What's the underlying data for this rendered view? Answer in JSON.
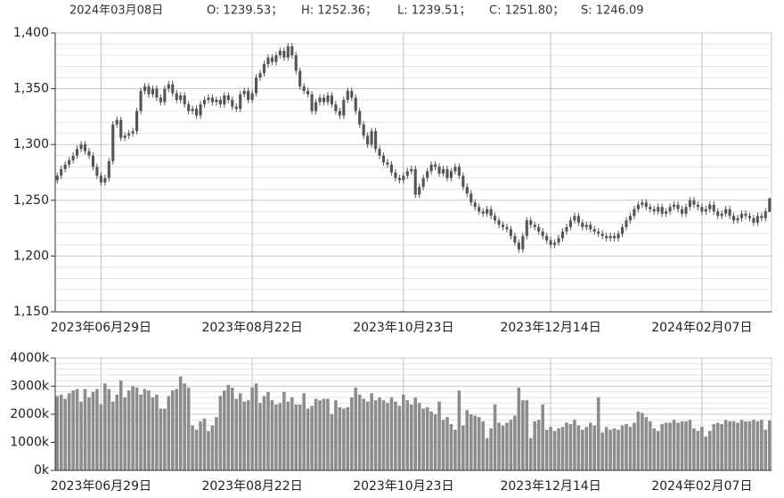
{
  "header": {
    "date": "2024年03月08日",
    "quote": [
      "O: 1239.53；",
      "H: 1252.36；",
      "L: 1239.51；",
      "C: 1251.80；",
      "S: 1246.09"
    ]
  },
  "chart_data": {
    "type": "candlestick",
    "categories": [
      null,
      null,
      null,
      null,
      null,
      null,
      null,
      null,
      null,
      null,
      null,
      "2023年06月29日",
      null,
      null,
      null,
      null,
      null,
      null,
      null,
      null,
      null,
      null,
      null,
      null,
      null,
      null,
      null,
      null,
      null,
      null,
      null,
      null,
      null,
      null,
      null,
      null,
      null,
      null,
      null,
      null,
      null,
      null,
      null,
      null,
      null,
      null,
      null,
      null,
      null,
      "2023年08月22日",
      null,
      null,
      null,
      null,
      null,
      null,
      null,
      null,
      null,
      null,
      null,
      null,
      null,
      null,
      null,
      null,
      null,
      null,
      null,
      null,
      null,
      null,
      null,
      null,
      null,
      null,
      null,
      null,
      null,
      null,
      null,
      null,
      null,
      null,
      null,
      null,
      null,
      "2023年10月23日",
      null,
      null,
      null,
      null,
      null,
      null,
      null,
      null,
      null,
      null,
      null,
      null,
      null,
      null,
      null,
      null,
      null,
      null,
      null,
      null,
      null,
      null,
      null,
      null,
      null,
      null,
      null,
      null,
      null,
      null,
      null,
      null,
      null,
      null,
      null,
      null,
      "2023年12月14日",
      null,
      null,
      null,
      null,
      null,
      null,
      null,
      null,
      null,
      null,
      null,
      null,
      null,
      null,
      null,
      null,
      null,
      null,
      null,
      null,
      null,
      null,
      null,
      null,
      null,
      null,
      null,
      null,
      null,
      null,
      null,
      null,
      null,
      null,
      null,
      null,
      null,
      "2024年02月07日",
      null,
      null,
      null,
      null,
      null,
      null,
      null,
      null,
      null,
      null,
      null,
      null,
      null,
      null,
      null,
      null,
      null
    ],
    "open": [
      1268,
      1272,
      1278,
      1282,
      1286,
      1290,
      1296,
      1300,
      1294,
      1290,
      1280,
      1272,
      1266,
      1270,
      1285,
      1318,
      1322,
      1306,
      1308,
      1310,
      1312,
      1330,
      1348,
      1352,
      1345,
      1350,
      1342,
      1338,
      1350,
      1354,
      1346,
      1340,
      1344,
      1336,
      1330,
      1332,
      1326,
      1336,
      1340,
      1342,
      1338,
      1340,
      1336,
      1344,
      1340,
      1334,
      1332,
      1345,
      1348,
      1340,
      1346,
      1360,
      1364,
      1372,
      1378,
      1374,
      1380,
      1384,
      1378,
      1388,
      1380,
      1366,
      1352,
      1348,
      1345,
      1330,
      1338,
      1342,
      1338,
      1344,
      1336,
      1330,
      1326,
      1340,
      1348,
      1342,
      1330,
      1318,
      1308,
      1300,
      1312,
      1296,
      1290,
      1284,
      1282,
      1275,
      1270,
      1268,
      1272,
      1276,
      1278,
      1255,
      1262,
      1270,
      1276,
      1282,
      1280,
      1274,
      1278,
      1270,
      1276,
      1280,
      1272,
      1262,
      1256,
      1248,
      1244,
      1240,
      1238,
      1242,
      1236,
      1232,
      1228,
      1226,
      1224,
      1218,
      1212,
      1206,
      1218,
      1232,
      1228,
      1226,
      1222,
      1218,
      1214,
      1210,
      1212,
      1216,
      1222,
      1226,
      1232,
      1236,
      1230,
      1226,
      1228,
      1224,
      1222,
      1220,
      1218,
      1216,
      1218,
      1216,
      1220,
      1226,
      1232,
      1236,
      1242,
      1246,
      1248,
      1244,
      1242,
      1240,
      1244,
      1238,
      1240,
      1244,
      1246,
      1242,
      1238,
      1244,
      1250,
      1246,
      1244,
      1240,
      1242,
      1246,
      1240,
      1236,
      1238,
      1242,
      1236,
      1232,
      1234,
      1238,
      1236,
      1234,
      1230,
      1236,
      1234,
      1239.53
    ],
    "high": [
      1275,
      1281,
      1285,
      1289,
      1293,
      1299,
      1303,
      1303,
      1297,
      1293,
      1283,
      1275,
      1273,
      1288,
      1321,
      1325,
      1325,
      1311,
      1313,
      1315,
      1333,
      1351,
      1355,
      1355,
      1353,
      1353,
      1345,
      1353,
      1357,
      1357,
      1349,
      1347,
      1347,
      1339,
      1335,
      1335,
      1339,
      1343,
      1345,
      1345,
      1343,
      1343,
      1347,
      1347,
      1343,
      1337,
      1348,
      1351,
      1351,
      1349,
      1363,
      1367,
      1375,
      1381,
      1381,
      1383,
      1387,
      1387,
      1391,
      1391,
      1383,
      1369,
      1355,
      1351,
      1348,
      1341,
      1345,
      1345,
      1347,
      1347,
      1339,
      1333,
      1343,
      1351,
      1351,
      1345,
      1333,
      1321,
      1311,
      1315,
      1315,
      1299,
      1293,
      1287,
      1285,
      1278,
      1273,
      1275,
      1279,
      1281,
      1281,
      1265,
      1273,
      1279,
      1285,
      1285,
      1283,
      1281,
      1281,
      1279,
      1283,
      1283,
      1275,
      1265,
      1259,
      1251,
      1247,
      1243,
      1245,
      1245,
      1239,
      1235,
      1231,
      1229,
      1227,
      1221,
      1215,
      1221,
      1235,
      1235,
      1231,
      1229,
      1225,
      1221,
      1217,
      1215,
      1219,
      1225,
      1229,
      1235,
      1239,
      1239,
      1233,
      1231,
      1231,
      1227,
      1225,
      1223,
      1221,
      1221,
      1221,
      1223,
      1229,
      1235,
      1239,
      1245,
      1249,
      1251,
      1251,
      1247,
      1245,
      1247,
      1247,
      1243,
      1247,
      1249,
      1249,
      1245,
      1247,
      1253,
      1253,
      1249,
      1247,
      1245,
      1249,
      1249,
      1243,
      1241,
      1245,
      1245,
      1239,
      1237,
      1241,
      1241,
      1239,
      1237,
      1239,
      1239,
      1243,
      1252.36
    ],
    "low": [
      1265,
      1269,
      1275,
      1279,
      1283,
      1287,
      1293,
      1291,
      1287,
      1277,
      1269,
      1263,
      1263,
      1267,
      1282,
      1315,
      1303,
      1303,
      1305,
      1307,
      1309,
      1327,
      1345,
      1342,
      1342,
      1339,
      1335,
      1335,
      1347,
      1343,
      1337,
      1337,
      1333,
      1327,
      1327,
      1323,
      1323,
      1333,
      1337,
      1335,
      1335,
      1333,
      1333,
      1337,
      1331,
      1329,
      1329,
      1342,
      1337,
      1337,
      1343,
      1357,
      1361,
      1369,
      1371,
      1371,
      1377,
      1375,
      1375,
      1377,
      1363,
      1349,
      1345,
      1342,
      1327,
      1327,
      1335,
      1335,
      1335,
      1333,
      1327,
      1323,
      1323,
      1337,
      1339,
      1327,
      1315,
      1305,
      1297,
      1297,
      1293,
      1287,
      1281,
      1279,
      1272,
      1267,
      1265,
      1265,
      1269,
      1273,
      1252,
      1252,
      1259,
      1267,
      1273,
      1277,
      1271,
      1271,
      1267,
      1267,
      1273,
      1269,
      1259,
      1253,
      1245,
      1241,
      1237,
      1235,
      1235,
      1233,
      1229,
      1225,
      1223,
      1221,
      1215,
      1209,
      1203,
      1203,
      1215,
      1225,
      1223,
      1219,
      1215,
      1211,
      1207,
      1207,
      1209,
      1213,
      1219,
      1223,
      1229,
      1227,
      1223,
      1223,
      1221,
      1219,
      1217,
      1215,
      1213,
      1213,
      1213,
      1213,
      1217,
      1223,
      1229,
      1233,
      1239,
      1243,
      1241,
      1239,
      1237,
      1237,
      1235,
      1235,
      1237,
      1241,
      1239,
      1235,
      1235,
      1241,
      1243,
      1241,
      1237,
      1237,
      1239,
      1237,
      1233,
      1233,
      1235,
      1233,
      1229,
      1229,
      1231,
      1233,
      1231,
      1227,
      1227,
      1231,
      1231,
      1239.51
    ],
    "close": [
      1272,
      1278,
      1282,
      1286,
      1290,
      1296,
      1300,
      1294,
      1290,
      1280,
      1272,
      1266,
      1270,
      1285,
      1318,
      1322,
      1306,
      1308,
      1310,
      1312,
      1330,
      1348,
      1352,
      1345,
      1350,
      1342,
      1338,
      1350,
      1354,
      1346,
      1340,
      1344,
      1336,
      1330,
      1332,
      1326,
      1336,
      1340,
      1342,
      1338,
      1340,
      1336,
      1344,
      1340,
      1334,
      1332,
      1345,
      1348,
      1340,
      1346,
      1360,
      1364,
      1372,
      1378,
      1374,
      1380,
      1384,
      1378,
      1388,
      1380,
      1366,
      1352,
      1348,
      1345,
      1330,
      1338,
      1342,
      1338,
      1344,
      1336,
      1330,
      1326,
      1340,
      1348,
      1342,
      1330,
      1318,
      1308,
      1300,
      1312,
      1296,
      1290,
      1284,
      1282,
      1275,
      1270,
      1268,
      1272,
      1276,
      1278,
      1255,
      1262,
      1270,
      1276,
      1282,
      1280,
      1274,
      1278,
      1270,
      1276,
      1280,
      1272,
      1262,
      1256,
      1248,
      1244,
      1240,
      1238,
      1242,
      1236,
      1232,
      1228,
      1226,
      1224,
      1218,
      1212,
      1206,
      1218,
      1232,
      1228,
      1226,
      1222,
      1218,
      1214,
      1210,
      1212,
      1216,
      1222,
      1226,
      1232,
      1236,
      1230,
      1226,
      1228,
      1224,
      1222,
      1220,
      1218,
      1216,
      1218,
      1216,
      1220,
      1226,
      1232,
      1236,
      1242,
      1246,
      1248,
      1244,
      1242,
      1240,
      1244,
      1238,
      1240,
      1244,
      1246,
      1242,
      1238,
      1244,
      1250,
      1246,
      1244,
      1240,
      1242,
      1246,
      1240,
      1236,
      1238,
      1242,
      1236,
      1232,
      1234,
      1238,
      1236,
      1234,
      1230,
      1236,
      1234,
      1240,
      1251.8
    ],
    "volume": [
      2650,
      2700,
      2550,
      2750,
      2850,
      2900,
      2450,
      2900,
      2600,
      2800,
      2900,
      2350,
      3100,
      2900,
      2450,
      2700,
      3200,
      2600,
      2850,
      3000,
      2950,
      2700,
      2900,
      2850,
      2600,
      2700,
      2200,
      2200,
      2650,
      2850,
      2900,
      3350,
      3100,
      2950,
      1600,
      1450,
      1750,
      1850,
      1400,
      1600,
      1900,
      2650,
      2850,
      3050,
      2950,
      2550,
      2750,
      2450,
      2500,
      2950,
      3100,
      2400,
      2650,
      2800,
      2500,
      2350,
      2400,
      2800,
      2450,
      2600,
      2350,
      2350,
      2750,
      2200,
      2300,
      2550,
      2500,
      2550,
      2550,
      2000,
      2500,
      2250,
      2200,
      2250,
      2600,
      2950,
      2700,
      2550,
      2450,
      2750,
      2500,
      2600,
      2500,
      2400,
      2600,
      2450,
      2300,
      2700,
      2500,
      2350,
      2600,
      2400,
      2200,
      2250,
      2100,
      2000,
      2450,
      1800,
      1900,
      1650,
      1450,
      2850,
      1600,
      2150,
      2000,
      1950,
      1900,
      1750,
      1150,
      1500,
      2350,
      1700,
      1600,
      1700,
      1800,
      1950,
      2950,
      2500,
      2500,
      1150,
      1750,
      1800,
      2350,
      1450,
      1550,
      1400,
      1500,
      1550,
      1700,
      1650,
      1800,
      1600,
      1450,
      1550,
      1700,
      1600,
      2600,
      1350,
      1550,
      1450,
      1500,
      1450,
      1600,
      1650,
      1550,
      1700,
      2100,
      2050,
      1900,
      1750,
      1500,
      1400,
      1650,
      1700,
      1700,
      1800,
      1700,
      1750,
      1750,
      1800,
      1500,
      1400,
      1550,
      1200,
      1400,
      1650,
      1700,
      1650,
      1800,
      1750,
      1750,
      1700,
      1800,
      1750,
      1750,
      1800,
      1750,
      1800,
      1450,
      1780
    ],
    "color": "#555555",
    "volume_color": "#8c8c8c",
    "ylim": [
      1150,
      1400
    ],
    "yticks": [
      {
        "value": 1150,
        "label": "1,150"
      },
      {
        "value": 1200,
        "label": "1,200"
      },
      {
        "value": 1250,
        "label": "1,250"
      },
      {
        "value": 1300,
        "label": "1,300"
      },
      {
        "value": 1350,
        "label": "1,350"
      },
      {
        "value": 1400,
        "label": "1,400"
      }
    ],
    "volume_lim": [
      0,
      4000
    ],
    "volume_ticks": [
      {
        "value": 0,
        "label": "0k"
      },
      {
        "value": 1000,
        "label": "1000k"
      },
      {
        "value": 2000,
        "label": "2000k"
      },
      {
        "value": 3000,
        "label": "3000k"
      },
      {
        "value": 4000,
        "label": "4000k"
      }
    ],
    "grid": true
  }
}
